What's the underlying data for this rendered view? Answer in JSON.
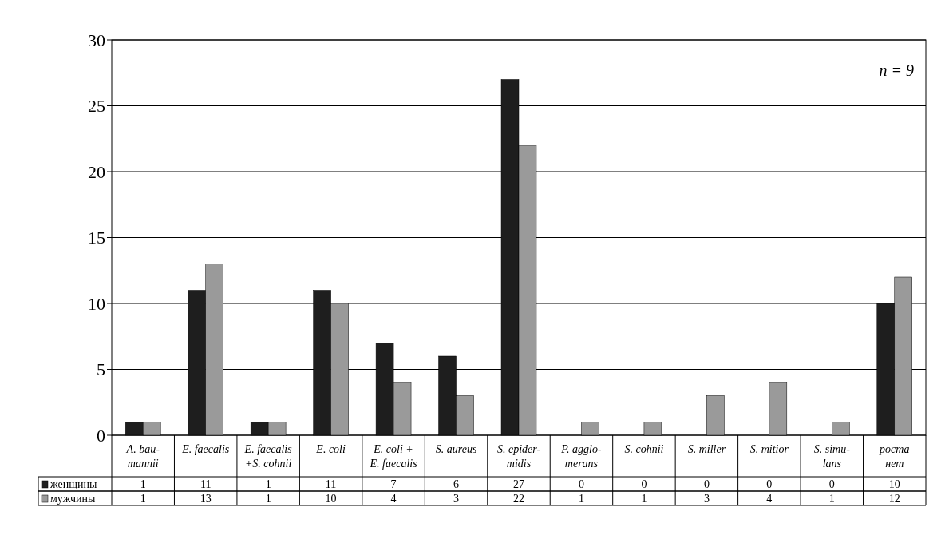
{
  "chart_data": {
    "type": "bar",
    "categories": [
      "A. bau-\nmannii",
      "E. faecalis",
      "E. faecalis\n+S. cohnii",
      "E. coli",
      "E. coli +\nE. faecalis",
      "S. aureus",
      "S. epider-\nmidis",
      "P. agglo-\nmerans",
      "S. cohnii",
      "S. miller",
      "S. mitior",
      "S. simu-\nlans",
      "роста\nнет"
    ],
    "series": [
      {
        "name": "женщины",
        "color": "#1e1e1e",
        "values": [
          1,
          11,
          1,
          11,
          7,
          6,
          27,
          0,
          0,
          0,
          0,
          0,
          10
        ]
      },
      {
        "name": "мужчины",
        "color": "#9a9a9a",
        "values": [
          1,
          13,
          1,
          10,
          4,
          3,
          22,
          1,
          1,
          3,
          4,
          1,
          12
        ]
      }
    ],
    "ylim": [
      0,
      30
    ],
    "yticks": [
      0,
      5,
      10,
      15,
      20,
      25,
      30
    ],
    "grid": "y",
    "legend": "bottom",
    "data_labels": true,
    "annotations": [
      "n = 9"
    ]
  }
}
